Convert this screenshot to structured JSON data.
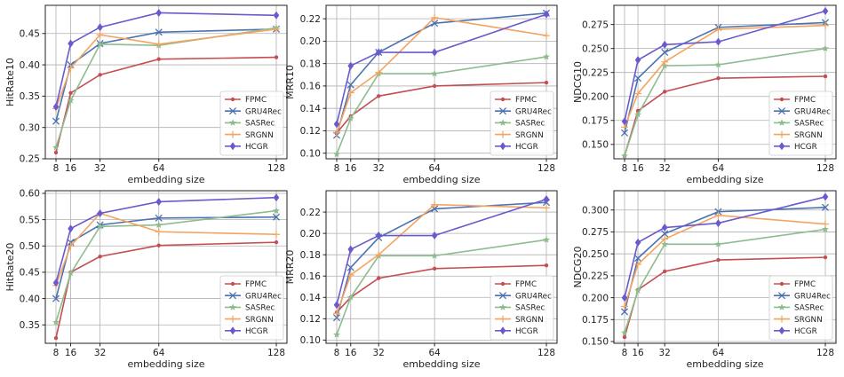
{
  "figure": {
    "xlabel": "embedding size",
    "xticks": [
      8,
      16,
      32,
      64,
      128
    ],
    "x": [
      8,
      16,
      32,
      64,
      128
    ],
    "series_styles": [
      {
        "name": "FPMC",
        "color": "#c44e52",
        "marker": "dot"
      },
      {
        "name": "GRU4Rec",
        "color": "#4c72b0",
        "marker": "x"
      },
      {
        "name": "SASRec",
        "color": "#8fbc8f",
        "marker": "star"
      },
      {
        "name": "SRGNN",
        "color": "#f4a460",
        "marker": "plus"
      },
      {
        "name": "HCGR",
        "color": "#6a5acd",
        "marker": "diamond"
      }
    ]
  },
  "chart_data": [
    {
      "type": "line",
      "ylabel": "HitRate10",
      "x": [
        8,
        16,
        32,
        64,
        128
      ],
      "ylim": [
        0.25,
        0.495
      ],
      "yticks": [
        "0.25",
        "0.30",
        "0.35",
        "0.40",
        "0.45"
      ],
      "yticks_values": [
        0.25,
        0.3,
        0.35,
        0.4,
        0.45
      ],
      "legend": "lower-right",
      "grid": true,
      "series": [
        {
          "name": "FPMC",
          "values": [
            0.26,
            0.355,
            0.384,
            0.409,
            0.412
          ]
        },
        {
          "name": "GRU4Rec",
          "values": [
            0.31,
            0.4,
            0.434,
            0.452,
            0.457
          ]
        },
        {
          "name": "SASRec",
          "values": [
            0.268,
            0.343,
            0.433,
            0.431,
            0.459
          ]
        },
        {
          "name": "SRGNN",
          "values": [
            0.33,
            0.395,
            0.448,
            0.433,
            0.457
          ]
        },
        {
          "name": "HCGR",
          "values": [
            0.333,
            0.434,
            0.46,
            0.483,
            0.479
          ]
        }
      ]
    },
    {
      "type": "line",
      "ylabel": "MRR10",
      "x": [
        8,
        16,
        32,
        64,
        128
      ],
      "ylim": [
        0.095,
        0.232
      ],
      "yticks": [
        "0.10",
        "0.12",
        "0.14",
        "0.16",
        "0.18",
        "0.20",
        "0.22"
      ],
      "yticks_values": [
        0.1,
        0.12,
        0.14,
        0.16,
        0.18,
        0.2,
        0.22
      ],
      "legend": "lower-right",
      "grid": true,
      "series": [
        {
          "name": "FPMC",
          "values": [
            0.118,
            0.133,
            0.151,
            0.16,
            0.163
          ]
        },
        {
          "name": "GRU4Rec",
          "values": [
            0.116,
            0.161,
            0.19,
            0.216,
            0.225
          ]
        },
        {
          "name": "SASRec",
          "values": [
            0.099,
            0.131,
            0.171,
            0.171,
            0.186
          ]
        },
        {
          "name": "SRGNN",
          "values": [
            0.118,
            0.154,
            0.172,
            0.221,
            0.205
          ]
        },
        {
          "name": "HCGR",
          "values": [
            0.126,
            0.178,
            0.19,
            0.19,
            0.224
          ]
        }
      ]
    },
    {
      "type": "line",
      "ylabel": "NDCG10",
      "x": [
        8,
        16,
        32,
        64,
        128
      ],
      "ylim": [
        0.135,
        0.295
      ],
      "yticks": [
        "0.150",
        "0.175",
        "0.200",
        "0.225",
        "0.250",
        "0.275"
      ],
      "yticks_values": [
        0.15,
        0.175,
        0.2,
        0.225,
        0.25,
        0.275
      ],
      "legend": "lower-right",
      "grid": true,
      "series": [
        {
          "name": "FPMC",
          "values": [
            0.138,
            0.185,
            0.205,
            0.219,
            0.221
          ]
        },
        {
          "name": "GRU4Rec",
          "values": [
            0.162,
            0.219,
            0.246,
            0.272,
            0.277
          ]
        },
        {
          "name": "SASRec",
          "values": [
            0.138,
            0.181,
            0.232,
            0.233,
            0.25
          ]
        },
        {
          "name": "SRGNN",
          "values": [
            0.168,
            0.203,
            0.236,
            0.27,
            0.274
          ]
        },
        {
          "name": "HCGR",
          "values": [
            0.174,
            0.238,
            0.254,
            0.257,
            0.289
          ]
        }
      ]
    },
    {
      "type": "line",
      "ylabel": "HitRate20",
      "x": [
        8,
        16,
        32,
        64,
        128
      ],
      "ylim": [
        0.315,
        0.605
      ],
      "yticks": [
        "0.35",
        "0.40",
        "0.45",
        "0.50",
        "0.55",
        "0.60"
      ],
      "yticks_values": [
        0.35,
        0.4,
        0.45,
        0.5,
        0.55,
        0.6
      ],
      "legend": "lower-right",
      "grid": true,
      "series": [
        {
          "name": "FPMC",
          "values": [
            0.325,
            0.45,
            0.48,
            0.501,
            0.507
          ]
        },
        {
          "name": "GRU4Rec",
          "values": [
            0.4,
            0.507,
            0.54,
            0.553,
            0.555
          ]
        },
        {
          "name": "SASRec",
          "values": [
            0.355,
            0.448,
            0.537,
            0.54,
            0.567
          ]
        },
        {
          "name": "SRGNN",
          "values": [
            0.425,
            0.5,
            0.562,
            0.527,
            0.522
          ]
        },
        {
          "name": "HCGR",
          "values": [
            0.43,
            0.533,
            0.562,
            0.584,
            0.592
          ]
        }
      ]
    },
    {
      "type": "line",
      "ylabel": "MRR20",
      "x": [
        8,
        16,
        32,
        64,
        128
      ],
      "ylim": [
        0.097,
        0.24
      ],
      "yticks": [
        "0.10",
        "0.12",
        "0.14",
        "0.16",
        "0.18",
        "0.20",
        "0.22"
      ],
      "yticks_values": [
        0.1,
        0.12,
        0.14,
        0.16,
        0.18,
        0.2,
        0.22
      ],
      "legend": "lower-right",
      "grid": true,
      "series": [
        {
          "name": "FPMC",
          "values": [
            0.126,
            0.14,
            0.158,
            0.167,
            0.17
          ]
        },
        {
          "name": "GRU4Rec",
          "values": [
            0.121,
            0.168,
            0.196,
            0.223,
            0.229
          ]
        },
        {
          "name": "SASRec",
          "values": [
            0.105,
            0.14,
            0.179,
            0.179,
            0.194
          ]
        },
        {
          "name": "SRGNN",
          "values": [
            0.125,
            0.161,
            0.18,
            0.227,
            0.224
          ]
        },
        {
          "name": "HCGR",
          "values": [
            0.133,
            0.185,
            0.198,
            0.198,
            0.232
          ]
        }
      ]
    },
    {
      "type": "line",
      "ylabel": "NDCG20",
      "x": [
        8,
        16,
        32,
        64,
        128
      ],
      "ylim": [
        0.148,
        0.322
      ],
      "yticks": [
        "0.150",
        "0.175",
        "0.200",
        "0.225",
        "0.250",
        "0.275",
        "0.300"
      ],
      "yticks_values": [
        0.15,
        0.175,
        0.2,
        0.225,
        0.25,
        0.275,
        0.3
      ],
      "legend": "lower-right",
      "grid": true,
      "series": [
        {
          "name": "FPMC",
          "values": [
            0.155,
            0.209,
            0.23,
            0.243,
            0.246
          ]
        },
        {
          "name": "GRU4Rec",
          "values": [
            0.184,
            0.245,
            0.273,
            0.298,
            0.303
          ]
        },
        {
          "name": "SASRec",
          "values": [
            0.16,
            0.208,
            0.261,
            0.261,
            0.278
          ]
        },
        {
          "name": "SRGNN",
          "values": [
            0.19,
            0.238,
            0.267,
            0.294,
            0.284
          ]
        },
        {
          "name": "HCGR",
          "values": [
            0.2,
            0.263,
            0.28,
            0.285,
            0.315
          ]
        }
      ]
    }
  ]
}
